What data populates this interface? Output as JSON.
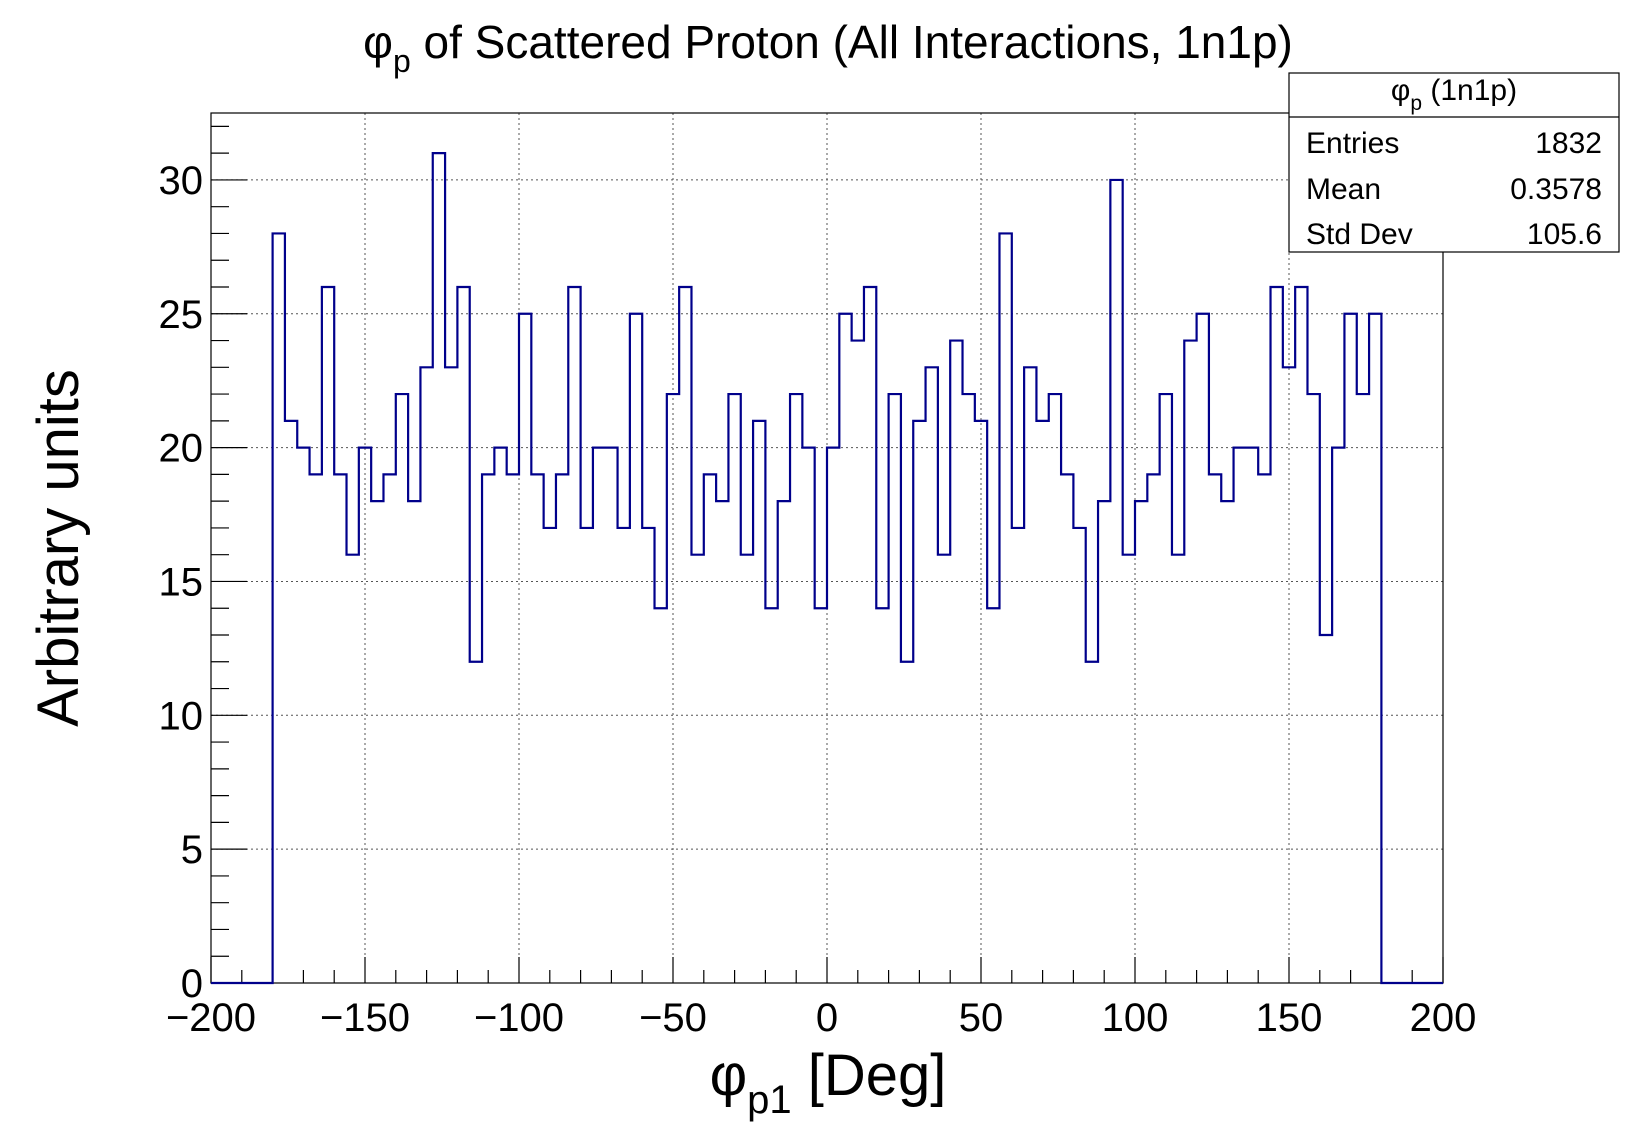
{
  "chart_data": {
    "type": "bar",
    "title": {
      "symbol": "φ",
      "sub": "p",
      "rest": " of Scattered Proton (All Interactions, 1n1p)"
    },
    "xlabel": {
      "symbol": "φ",
      "sub": "p1",
      "rest": " [Deg]"
    },
    "ylabel": "Arbitrary units",
    "xlim": [
      -200,
      200
    ],
    "ylim": [
      0,
      32.5
    ],
    "xticks": [
      -200,
      -150,
      -100,
      -50,
      0,
      50,
      100,
      150,
      200
    ],
    "yticks": [
      0,
      5,
      10,
      15,
      20,
      25,
      30
    ],
    "grid": true,
    "bin_start": -180,
    "bin_width": 4,
    "values": [
      28,
      21,
      20,
      19,
      26,
      19,
      16,
      20,
      18,
      19,
      22,
      18,
      23,
      31,
      23,
      26,
      12,
      19,
      20,
      19,
      25,
      19,
      17,
      19,
      26,
      17,
      20,
      20,
      17,
      25,
      17,
      14,
      22,
      26,
      16,
      19,
      18,
      22,
      16,
      21,
      14,
      18,
      22,
      20,
      14,
      20,
      25,
      24,
      26,
      14,
      22,
      12,
      21,
      23,
      16,
      24,
      22,
      21,
      14,
      28,
      17,
      23,
      21,
      22,
      19,
      17,
      12,
      18,
      30,
      16,
      18,
      19,
      22,
      16,
      24,
      25,
      19,
      18,
      20,
      20,
      19,
      26,
      23,
      26,
      22,
      13,
      20,
      25,
      22,
      25
    ],
    "line_color": "#00008b",
    "stats": {
      "title": {
        "symbol": "φ",
        "sub": "p",
        "rest": " (1n1p)"
      },
      "rows": [
        {
          "label": "Entries",
          "value": "1832"
        },
        {
          "label": "Mean",
          "value": "0.3578"
        },
        {
          "label": "Std Dev",
          "value": "105.6"
        }
      ]
    }
  }
}
